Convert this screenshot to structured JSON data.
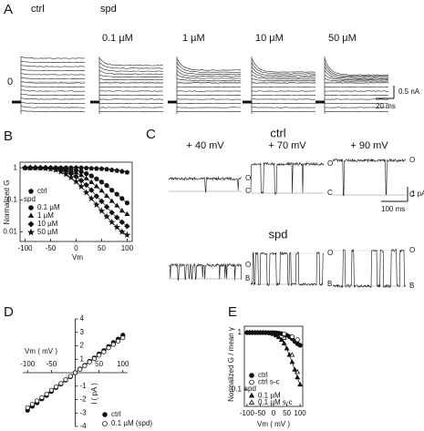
{
  "panel_labels": [
    "A",
    "B",
    "C",
    "D",
    "E"
  ],
  "panel_a": {
    "conditions": [
      "ctrl",
      "spd"
    ],
    "concentrations": [
      "0.1 µM",
      "1 µM",
      "10 µM",
      "50 µM"
    ],
    "zero_label": "0",
    "scale_current": "0.5 nA",
    "scale_time": "20 ms"
  },
  "panel_c": {
    "groups": [
      "ctrl",
      "spd"
    ],
    "voltages": [
      "+ 40 mV",
      "+ 70 mV",
      "+ 90 mV"
    ],
    "state_open": "O",
    "state_closed": "C",
    "state_blocked": "B",
    "scale_current": "1 pA",
    "scale_time": "100 ms"
  },
  "chart_data": [
    {
      "type": "scatter",
      "frame": "box",
      "log_y": true,
      "xlabel": "Vm",
      "ylabel": "Normalized G",
      "xlim": [
        -110,
        110
      ],
      "xticks": [
        -100,
        -50,
        0,
        50,
        100
      ],
      "ylim": [
        0.005,
        1.5
      ],
      "yticks": [
        1,
        0.1,
        0.01
      ],
      "series": [
        {
          "name": "ctrl",
          "marker": "pentagon",
          "filled": true,
          "line": true,
          "color": "#111",
          "x": [
            -100,
            -90,
            -80,
            -70,
            -60,
            -50,
            -40,
            -30,
            -20,
            -10,
            0,
            10,
            20,
            30,
            40,
            50,
            60,
            70,
            80,
            90,
            100
          ],
          "values": [
            1,
            1,
            1,
            1,
            1,
            1,
            1,
            1,
            1,
            1,
            1,
            1,
            0.98,
            0.96,
            0.95,
            0.93,
            0.9,
            0.86,
            0.82,
            0.77,
            0.72
          ]
        },
        {
          "name": "0.1 µM",
          "group": "spd",
          "marker": "circle",
          "filled": true,
          "line": true,
          "color": "#111",
          "x": [
            -100,
            -90,
            -80,
            -70,
            -60,
            -50,
            -40,
            -30,
            -20,
            -10,
            0,
            10,
            20,
            30,
            40,
            50,
            60,
            70,
            80,
            90,
            100
          ],
          "values": [
            1,
            1,
            1,
            1,
            1,
            1,
            0.99,
            0.97,
            0.94,
            0.9,
            0.84,
            0.76,
            0.66,
            0.56,
            0.45,
            0.36,
            0.28,
            0.2,
            0.15,
            0.11,
            0.08
          ]
        },
        {
          "name": "1 µM",
          "group": "spd",
          "marker": "triangle",
          "filled": true,
          "line": true,
          "color": "#111",
          "x": [
            -100,
            -90,
            -80,
            -70,
            -60,
            -50,
            -40,
            -30,
            -20,
            -10,
            0,
            10,
            20,
            30,
            40,
            50,
            60,
            70,
            80,
            90,
            100
          ],
          "values": [
            1,
            1,
            1,
            1,
            1,
            0.99,
            0.97,
            0.94,
            0.88,
            0.8,
            0.7,
            0.58,
            0.46,
            0.35,
            0.26,
            0.19,
            0.13,
            0.09,
            0.065,
            0.045,
            0.035
          ]
        },
        {
          "name": "10 µM",
          "group": "spd",
          "marker": "diamond",
          "filled": true,
          "line": true,
          "color": "#111",
          "x": [
            -100,
            -90,
            -80,
            -70,
            -60,
            -50,
            -40,
            -30,
            -20,
            -10,
            0,
            10,
            20,
            30,
            40,
            50,
            60,
            70,
            80,
            90,
            100
          ],
          "values": [
            1,
            1,
            1,
            1,
            0.99,
            0.97,
            0.93,
            0.87,
            0.78,
            0.66,
            0.53,
            0.4,
            0.29,
            0.2,
            0.13,
            0.09,
            0.06,
            0.04,
            0.028,
            0.02,
            0.015
          ]
        },
        {
          "name": "50 µM",
          "group": "spd",
          "marker": "star",
          "filled": true,
          "line": true,
          "color": "#111",
          "x": [
            -100,
            -90,
            -80,
            -70,
            -60,
            -50,
            -40,
            -30,
            -20,
            -10,
            0,
            10,
            20,
            30,
            40,
            50,
            60,
            70,
            80,
            90,
            100
          ],
          "values": [
            1,
            1,
            1,
            0.99,
            0.97,
            0.93,
            0.86,
            0.76,
            0.63,
            0.5,
            0.37,
            0.26,
            0.17,
            0.11,
            0.07,
            0.045,
            0.03,
            0.02,
            0.014,
            0.01,
            0.008
          ]
        }
      ]
    },
    {
      "type": "scatter",
      "frame": "cross",
      "log_y": false,
      "xlabel": "Vm ( mV )",
      "ylabel": "I ( pA )",
      "xlim": [
        -110,
        110
      ],
      "xticks": [
        -100,
        -50,
        50,
        100
      ],
      "ylim": [
        -4,
        4
      ],
      "yticks": [
        4,
        3,
        2,
        1,
        -1,
        -2,
        -3,
        -4
      ],
      "series": [
        {
          "name": "ctrl",
          "marker": "circle",
          "filled": true,
          "line": true,
          "color": "#111",
          "x": [
            -100,
            -90,
            -80,
            -70,
            -60,
            -50,
            -40,
            -30,
            -20,
            -10,
            0,
            10,
            20,
            30,
            40,
            50,
            60,
            70,
            80,
            90,
            100
          ],
          "values": [
            -2.8,
            -2.5,
            -2.25,
            -1.95,
            -1.7,
            -1.4,
            -1.1,
            -0.85,
            -0.55,
            -0.3,
            0,
            0.28,
            0.55,
            0.85,
            1.1,
            1.4,
            1.65,
            1.95,
            2.25,
            2.5,
            2.8
          ]
        },
        {
          "name": "0.1 µM (spd)",
          "marker": "circle",
          "filled": false,
          "line": true,
          "color": "#111",
          "x": [
            -100,
            -90,
            -80,
            -70,
            -60,
            -50,
            -40,
            -30,
            -20,
            -10,
            0,
            10,
            20,
            30,
            40,
            50,
            60,
            70,
            80,
            90,
            100
          ],
          "values": [
            -2.6,
            -2.35,
            -2.1,
            -1.85,
            -1.6,
            -1.3,
            -1.05,
            -0.8,
            -0.52,
            -0.27,
            0,
            0.26,
            0.52,
            0.8,
            1.05,
            1.3,
            1.55,
            1.85,
            2.1,
            2.35,
            2.6
          ]
        }
      ]
    },
    {
      "type": "scatter",
      "frame": "box",
      "log_y": true,
      "xlabel": "Vm ( mV )",
      "ylabel": "Normalized G / mean γ",
      "xlim": [
        -110,
        110
      ],
      "xticks": [
        -100,
        -50,
        0,
        50,
        100
      ],
      "ylim": [
        0.05,
        1.3
      ],
      "yticks": [
        1,
        0.1
      ],
      "series": [
        {
          "name": "ctrl",
          "marker": "circle",
          "filled": true,
          "line": true,
          "color": "#111",
          "x": [
            -100,
            -90,
            -80,
            -70,
            -60,
            -50,
            -40,
            -30,
            -20,
            -10,
            0,
            10,
            20,
            30,
            40,
            50,
            60,
            70,
            80,
            90,
            100
          ],
          "values": [
            1,
            1,
            1,
            1,
            1,
            1,
            1,
            1,
            1,
            1,
            1,
            0.99,
            0.98,
            0.96,
            0.93,
            0.9,
            0.85,
            0.78,
            0.7,
            0.64,
            0.6
          ]
        },
        {
          "name": "ctrl s-c",
          "marker": "circle",
          "filled": false,
          "line": false,
          "color": "#111",
          "x": [
            40,
            70,
            90
          ],
          "values": [
            0.95,
            0.85,
            0.75
          ]
        },
        {
          "name": "0.1 µM",
          "group": "spd",
          "marker": "triangle",
          "filled": true,
          "line": true,
          "color": "#111",
          "x": [
            -100,
            -90,
            -80,
            -70,
            -60,
            -50,
            -40,
            -30,
            -20,
            -10,
            0,
            10,
            20,
            30,
            40,
            50,
            60,
            70,
            80,
            90,
            100
          ],
          "values": [
            1,
            1,
            1,
            1,
            1,
            1,
            1,
            0.99,
            0.98,
            0.96,
            0.93,
            0.88,
            0.82,
            0.74,
            0.64,
            0.52,
            0.4,
            0.3,
            0.22,
            0.16,
            0.12
          ]
        },
        {
          "name": "0.1 µM s-c",
          "group": "spd",
          "marker": "triangle",
          "filled": false,
          "line": false,
          "color": "#111",
          "x": [
            40,
            70,
            90
          ],
          "values": [
            0.8,
            0.4,
            0.2
          ]
        }
      ]
    }
  ]
}
